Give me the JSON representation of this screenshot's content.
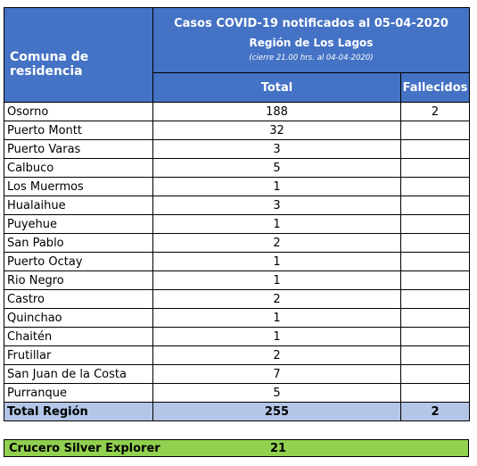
{
  "header": {
    "left_label": "Comuna de residencia",
    "title_line1": "Casos COVID-19 notificados al 05-04-2020",
    "title_line2": "Región de Los Lagos",
    "title_line3": "(cierre 21.00 hrs. al 04-04-2020)",
    "col_total": "Total",
    "col_deaths": "Fallecidos"
  },
  "rows": [
    {
      "comuna": "Osorno",
      "total": "188",
      "fallecidos": "2"
    },
    {
      "comuna": "Puerto Montt",
      "total": "32",
      "fallecidos": ""
    },
    {
      "comuna": "Puerto Varas",
      "total": "3",
      "fallecidos": ""
    },
    {
      "comuna": "Calbuco",
      "total": "5",
      "fallecidos": ""
    },
    {
      "comuna": "Los Muermos",
      "total": "1",
      "fallecidos": ""
    },
    {
      "comuna": "Hualaihue",
      "total": "3",
      "fallecidos": ""
    },
    {
      "comuna": "Puyehue",
      "total": "1",
      "fallecidos": ""
    },
    {
      "comuna": "San Pablo",
      "total": "2",
      "fallecidos": ""
    },
    {
      "comuna": "Puerto Octay",
      "total": "1",
      "fallecidos": ""
    },
    {
      "comuna": "Rio Negro",
      "total": "1",
      "fallecidos": ""
    },
    {
      "comuna": "Castro",
      "total": "2",
      "fallecidos": ""
    },
    {
      "comuna": "Quinchao",
      "total": "1",
      "fallecidos": ""
    },
    {
      "comuna": "Chaitén",
      "total": "1",
      "fallecidos": ""
    },
    {
      "comuna": "Frutillar",
      "total": "2",
      "fallecidos": ""
    },
    {
      "comuna": "San Juan de la Costa",
      "total": "7",
      "fallecidos": ""
    },
    {
      "comuna": "Purranque",
      "total": "5",
      "fallecidos": ""
    }
  ],
  "total_row": {
    "label": "Total Región",
    "total": "255",
    "fallecidos": "2"
  },
  "cruise": {
    "label": "Crucero Silver Explorer",
    "value": "21"
  },
  "colors": {
    "header_bg": "#4472c4",
    "total_row_bg": "#b4c6e7",
    "cruise_bg": "#92d050"
  }
}
